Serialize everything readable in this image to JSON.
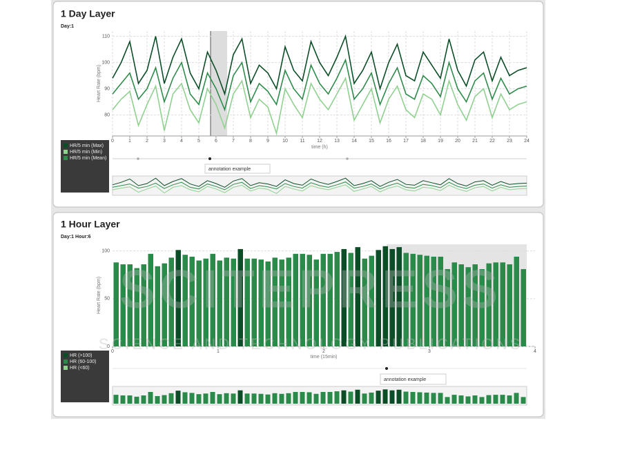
{
  "watermark": {
    "title": "SCITEPRESS",
    "subtitle": "SCIENCE AND TECHNOLOGY PUBLICATIONS"
  },
  "chart_data": [
    {
      "type": "line",
      "title": "1 Day Layer",
      "subtitle": "Day:1",
      "x_label": "time (h)",
      "y_label": "Heart Rate (bpm)",
      "annotation": "annotation example",
      "x": [
        0,
        0.5,
        1,
        1.5,
        2,
        2.5,
        3,
        3.5,
        4,
        4.5,
        5,
        5.5,
        6,
        6.5,
        7,
        7.5,
        8,
        8.5,
        9,
        9.5,
        10,
        10.5,
        11,
        11.5,
        12,
        12.5,
        13,
        13.5,
        14,
        14.5,
        15,
        15.5,
        16,
        16.5,
        17,
        17.5,
        18,
        18.5,
        19,
        19.5,
        20,
        20.5,
        21,
        21.5,
        22,
        22.5,
        23,
        23.5,
        24
      ],
      "series": [
        {
          "name": "HR/5 min (Max)",
          "color": "#0b4d26",
          "values": [
            94,
            100,
            108,
            92,
            97,
            110,
            92,
            102,
            109,
            96,
            90,
            104,
            97,
            88,
            103,
            109,
            92,
            99,
            96,
            90,
            106,
            97,
            93,
            108,
            100,
            95,
            102,
            110,
            92,
            97,
            104,
            90,
            100,
            107,
            95,
            93,
            104,
            99,
            94,
            109,
            97,
            91,
            101,
            104,
            93,
            102,
            95,
            97,
            98
          ]
        },
        {
          "name": "HR/5 min (Min)",
          "color": "#8fd18f",
          "values": [
            82,
            86,
            89,
            76,
            84,
            91,
            74,
            88,
            92,
            82,
            77,
            90,
            84,
            75,
            88,
            93,
            79,
            86,
            83,
            73,
            90,
            84,
            79,
            92,
            86,
            82,
            88,
            94,
            78,
            84,
            90,
            77,
            86,
            91,
            82,
            79,
            88,
            86,
            80,
            93,
            84,
            78,
            87,
            90,
            79,
            88,
            82,
            84,
            85
          ]
        },
        {
          "name": "HR/5 min (Mean)",
          "color": "#2e8b4a",
          "values": [
            88,
            92,
            96,
            86,
            90,
            98,
            85,
            94,
            100,
            88,
            84,
            96,
            90,
            82,
            95,
            100,
            85,
            92,
            89,
            84,
            97,
            90,
            86,
            99,
            92,
            88,
            94,
            101,
            86,
            90,
            96,
            84,
            92,
            98,
            88,
            86,
            95,
            92,
            87,
            100,
            90,
            85,
            93,
            96,
            86,
            94,
            88,
            90,
            91
          ]
        }
      ],
      "xlim": [
        0,
        24
      ],
      "xticks": [
        0,
        1,
        2,
        3,
        4,
        5,
        6,
        7,
        8,
        9,
        10,
        11,
        12,
        13,
        14,
        15,
        16,
        17,
        18,
        19,
        20,
        21,
        22,
        23,
        24
      ],
      "ylim": [
        72,
        112
      ],
      "yticks": [
        80,
        90,
        100,
        110
      ],
      "grid": true
    },
    {
      "type": "bar",
      "title": "1 Hour Layer",
      "subtitle": "Day:1 Hour:6",
      "x_label": "time (15min)",
      "y_label": "Heart Rate (bpm)",
      "annotation": "annotation example",
      "values": [
        88,
        86,
        86,
        82,
        86,
        97,
        84,
        87,
        93,
        101,
        96,
        94,
        90,
        92,
        97,
        90,
        93,
        92,
        102,
        92,
        92,
        91,
        89,
        93,
        91,
        93,
        97,
        97,
        96,
        91,
        97,
        97,
        99,
        102,
        98,
        104,
        92,
        95,
        101,
        105,
        102,
        104,
        98,
        97,
        96,
        95,
        94,
        94,
        81,
        88,
        86,
        83,
        86,
        81,
        87,
        88,
        88,
        86,
        94,
        81
      ],
      "colors": [
        "#2a8a4a",
        "#2a8a4a",
        "#2a8a4a",
        "#2a8a4a",
        "#2a8a4a",
        "#2a8a4a",
        "#2a8a4a",
        "#2a8a4a",
        "#2a8a4a",
        "#0b4d26",
        "#2a8a4a",
        "#2a8a4a",
        "#2a8a4a",
        "#2a8a4a",
        "#2a8a4a",
        "#2a8a4a",
        "#2a8a4a",
        "#2a8a4a",
        "#0b4d26",
        "#2a8a4a",
        "#2a8a4a",
        "#2a8a4a",
        "#2a8a4a",
        "#2a8a4a",
        "#2a8a4a",
        "#2a8a4a",
        "#2a8a4a",
        "#2a8a4a",
        "#2a8a4a",
        "#2a8a4a",
        "#2a8a4a",
        "#2a8a4a",
        "#2a8a4a",
        "#0b4d26",
        "#2a8a4a",
        "#0b4d26",
        "#2a8a4a",
        "#2a8a4a",
        "#0b4d26",
        "#0b4d26",
        "#0b4d26",
        "#0b4d26",
        "#2a8a4a",
        "#2a8a4a",
        "#2a8a4a",
        "#2a8a4a",
        "#2a8a4a",
        "#2a8a4a",
        "#2a8a4a",
        "#2a8a4a",
        "#2a8a4a",
        "#2a8a4a",
        "#2a8a4a",
        "#2a8a4a",
        "#2a8a4a",
        "#2a8a4a",
        "#2a8a4a",
        "#2a8a4a",
        "#2a8a4a",
        "#2a8a4a"
      ],
      "legend": [
        {
          "name": "HR (>100)",
          "color": "#0b4d26"
        },
        {
          "name": "HR (60-100)",
          "color": "#2a8a4a"
        },
        {
          "name": "HR (<60)",
          "color": "#8fd18f"
        }
      ],
      "xlim": [
        0,
        4
      ],
      "xticks": [
        0,
        1,
        2,
        3,
        4
      ],
      "ylim": [
        0,
        107
      ],
      "yticks": [
        0,
        50,
        100
      ],
      "grid": true
    }
  ]
}
